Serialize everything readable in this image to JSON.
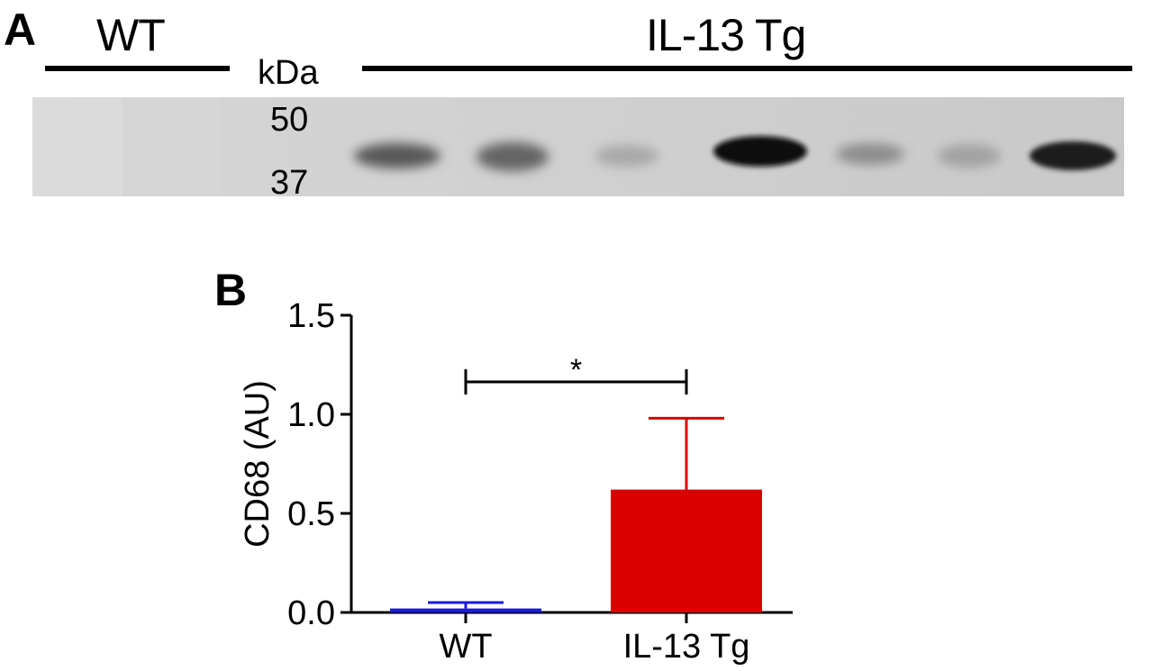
{
  "panel_a": {
    "letter": "A",
    "groups": [
      "WT",
      "IL-13 Tg"
    ],
    "kda_label": "kDa",
    "markers": [
      "50",
      "37"
    ]
  },
  "panel_b": {
    "letter": "B"
  },
  "colors": {
    "wt": "#1a1adc",
    "il13": "#d90000",
    "axis": "#000000"
  },
  "chart_data": {
    "type": "bar",
    "categories": [
      "WT",
      "IL-13 Tg"
    ],
    "values": [
      0.02,
      0.62
    ],
    "errors": [
      0.03,
      0.36
    ],
    "ylabel": "CD68 (AU)",
    "xlabel": "",
    "ylim": [
      0,
      1.5
    ],
    "yticks": [
      "0.0",
      "0.5",
      "1.0",
      "1.5"
    ],
    "significance": "*",
    "grid": false
  }
}
